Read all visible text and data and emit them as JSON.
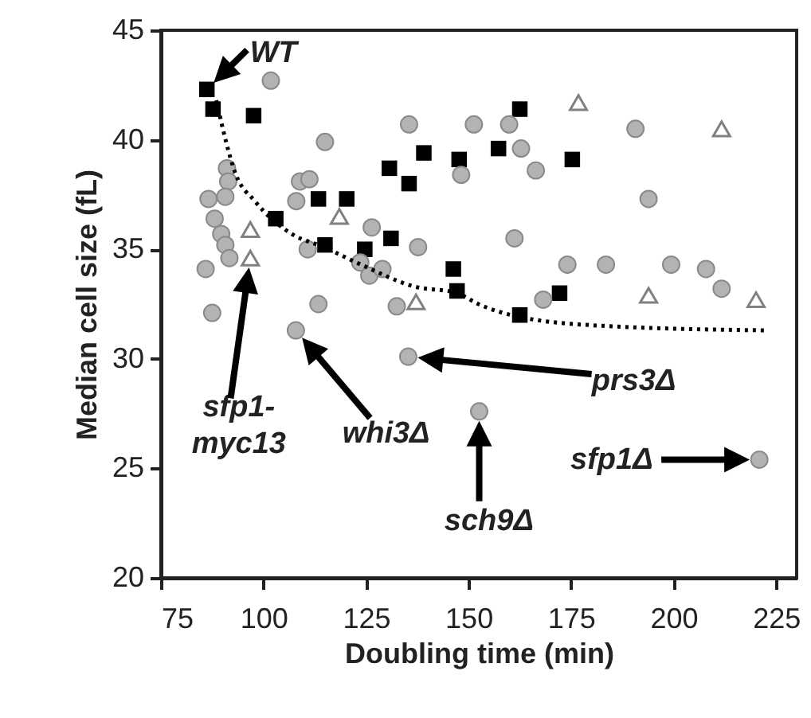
{
  "chart_data": {
    "type": "scatter",
    "xlabel": "Doubling time (min)",
    "ylabel": "Median cell size (fL)",
    "xlim": [
      75,
      230
    ],
    "xticks": [
      75,
      100,
      125,
      150,
      175,
      200,
      225
    ],
    "ylim": [
      20,
      45
    ],
    "yticks": [
      20,
      25,
      30,
      35,
      40,
      45
    ],
    "grid": false,
    "series": [
      {
        "type": "scatter",
        "marker": "square",
        "color": "#000000",
        "x": [
          86.2,
          87.7,
          97.6,
          103.0,
          113.4,
          120.3,
          115.0,
          124.7,
          131.1,
          130.7,
          135.5,
          139.1,
          147.7,
          146.3,
          147.2,
          162.5,
          157.3,
          175.3,
          172.2,
          162.5
        ],
        "values": [
          42.3,
          41.4,
          41.1,
          36.4,
          37.3,
          37.3,
          35.2,
          35.0,
          35.5,
          38.7,
          38.0,
          39.4,
          39.1,
          34.1,
          33.1,
          41.4,
          39.6,
          39.1,
          33.0,
          32.0
        ]
      },
      {
        "type": "scatter",
        "marker": "circle",
        "color": "#b3b3b3",
        "x": [
          101.8,
          115.0,
          135.5,
          91.1,
          91.4,
          90.7,
          86.6,
          88.1,
          89.7,
          90.7,
          91.7,
          85.9,
          87.5,
          108.9,
          111.2,
          108.0,
          110.8,
          113.4,
          107.9,
          126.4,
          123.6,
          125.8,
          129.0,
          137.7,
          132.5,
          135.3,
          151.3,
          159.9,
          162.8,
          166.4,
          148.2,
          190.7,
          193.9,
          161.2,
          174.1,
          183.5,
          199.4,
          207.9,
          211.7,
          168.2,
          152.6,
          220.9
        ],
        "values": [
          42.7,
          39.9,
          40.7,
          38.7,
          38.1,
          37.4,
          37.3,
          36.4,
          35.7,
          35.2,
          34.6,
          34.1,
          32.1,
          38.1,
          38.2,
          37.2,
          35.0,
          32.5,
          31.3,
          36.0,
          34.4,
          33.8,
          34.1,
          35.1,
          32.4,
          30.1,
          40.7,
          40.7,
          39.6,
          38.6,
          38.4,
          40.5,
          37.3,
          35.5,
          34.3,
          34.3,
          34.3,
          34.1,
          33.2,
          32.7,
          27.6,
          25.4
        ]
      },
      {
        "type": "scatter",
        "marker": "triangle",
        "color": "#808080",
        "x": [
          96.8,
          96.8,
          118.5,
          137.2,
          176.8,
          211.7,
          193.9,
          220.1
        ],
        "values": [
          35.9,
          34.6,
          36.5,
          32.6,
          41.7,
          40.5,
          32.9,
          32.7
        ]
      },
      {
        "type": "line",
        "marker": "none",
        "line_style": "dotted",
        "color": "#000000",
        "x": [
          88.5,
          93.3,
          97.9,
          106.9,
          114.7,
          123.8,
          136.8,
          147.2,
          152.4,
          162.8,
          183.5,
          222.4
        ],
        "values": [
          41.8,
          38.4,
          37.2,
          35.7,
          35.1,
          34.3,
          33.3,
          33.0,
          32.5,
          31.9,
          31.5,
          31.3
        ]
      }
    ],
    "annotations": [
      {
        "text": "WT",
        "x": 86.2,
        "y": 42.3
      },
      "sfp1-\nmyc13",
      "whi3Δ",
      "prs3Δ",
      "sch9Δ",
      "sfp1Δ"
    ]
  }
}
